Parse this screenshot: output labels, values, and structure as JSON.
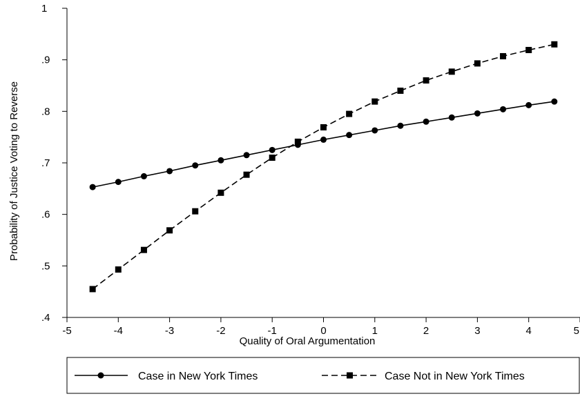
{
  "chart_data": {
    "type": "line",
    "title": "",
    "xlabel": "Quality of Oral Argumentation",
    "ylabel": "Probability of Justice Voting to Reverse",
    "xlim": [
      -5,
      5
    ],
    "ylim": [
      0.4,
      1.0
    ],
    "xticks": [
      -5,
      -4,
      -3,
      -2,
      -1,
      0,
      1,
      2,
      3,
      4,
      5
    ],
    "xtick_labels": [
      "-5",
      "-4",
      "-3",
      "-2",
      "-1",
      "0",
      "1",
      "2",
      "3",
      "4",
      "5"
    ],
    "yticks": [
      0.4,
      0.5,
      0.6,
      0.7,
      0.8,
      0.9,
      1.0
    ],
    "ytick_labels": [
      ".4",
      ".5",
      ".6",
      ".7",
      ".8",
      ".9",
      "1"
    ],
    "grid": false,
    "legend_position": "bottom",
    "x": [
      -4.5,
      -4.0,
      -3.5,
      -3.0,
      -2.5,
      -2.0,
      -1.5,
      -1.0,
      -0.5,
      0.0,
      0.5,
      1.0,
      1.5,
      2.0,
      2.5,
      3.0,
      3.5,
      4.0,
      4.5
    ],
    "series": [
      {
        "name": "Case in New York Times",
        "marker": "circle",
        "line_style": "solid",
        "color": "#000000",
        "values": [
          0.653,
          0.663,
          0.674,
          0.684,
          0.695,
          0.705,
          0.715,
          0.725,
          0.735,
          0.745,
          0.754,
          0.763,
          0.772,
          0.78,
          0.788,
          0.796,
          0.804,
          0.812,
          0.819
        ]
      },
      {
        "name": "Case Not in New York Times",
        "marker": "square",
        "line_style": "dashed",
        "color": "#000000",
        "values": [
          0.455,
          0.493,
          0.531,
          0.569,
          0.606,
          0.642,
          0.677,
          0.71,
          0.741,
          0.769,
          0.795,
          0.819,
          0.84,
          0.86,
          0.877,
          0.893,
          0.907,
          0.919,
          0.93
        ]
      }
    ]
  }
}
